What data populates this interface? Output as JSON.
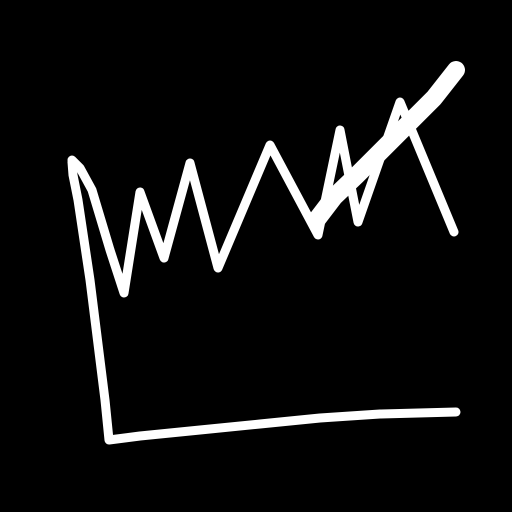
{
  "image": {
    "background_color": "#000000",
    "stroke_color": "#ffffff",
    "icon": "hand-drawn-line-chart-icon"
  }
}
